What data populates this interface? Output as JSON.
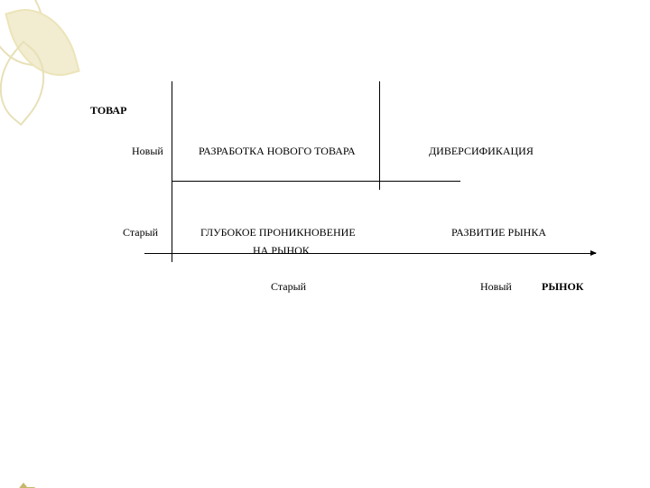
{
  "decor": {
    "leaf_stroke": "#e7e0b8",
    "leaf_fill": "#f2edd0",
    "corner_color": "#c6b86a"
  },
  "axes": {
    "y_title": "ТОВАР",
    "y_new": "Новый",
    "y_old": "Старый",
    "x_title": "РЫНОК",
    "x_new": "Новый",
    "x_old": "Старый",
    "line_color": "#000000"
  },
  "cells": {
    "top_left": "РАЗРАБОТКА НОВОГО ТОВАРА",
    "top_right": "ДИВЕРСИФИКАЦИЯ",
    "bottom_left_line1": "ГЛУБОКОЕ ПРОНИКНОВЕНИЕ",
    "bottom_left_line2": "НА РЫНОК",
    "bottom_right": "РАЗВИТИЕ РЫНКА"
  },
  "style": {
    "background_color": "#ffffff",
    "text_color": "#000000",
    "font_family": "Georgia",
    "label_fontsize_pt": 9,
    "title_weight": "bold"
  },
  "diagram": {
    "type": "matrix",
    "rows": 2,
    "cols": 2
  }
}
